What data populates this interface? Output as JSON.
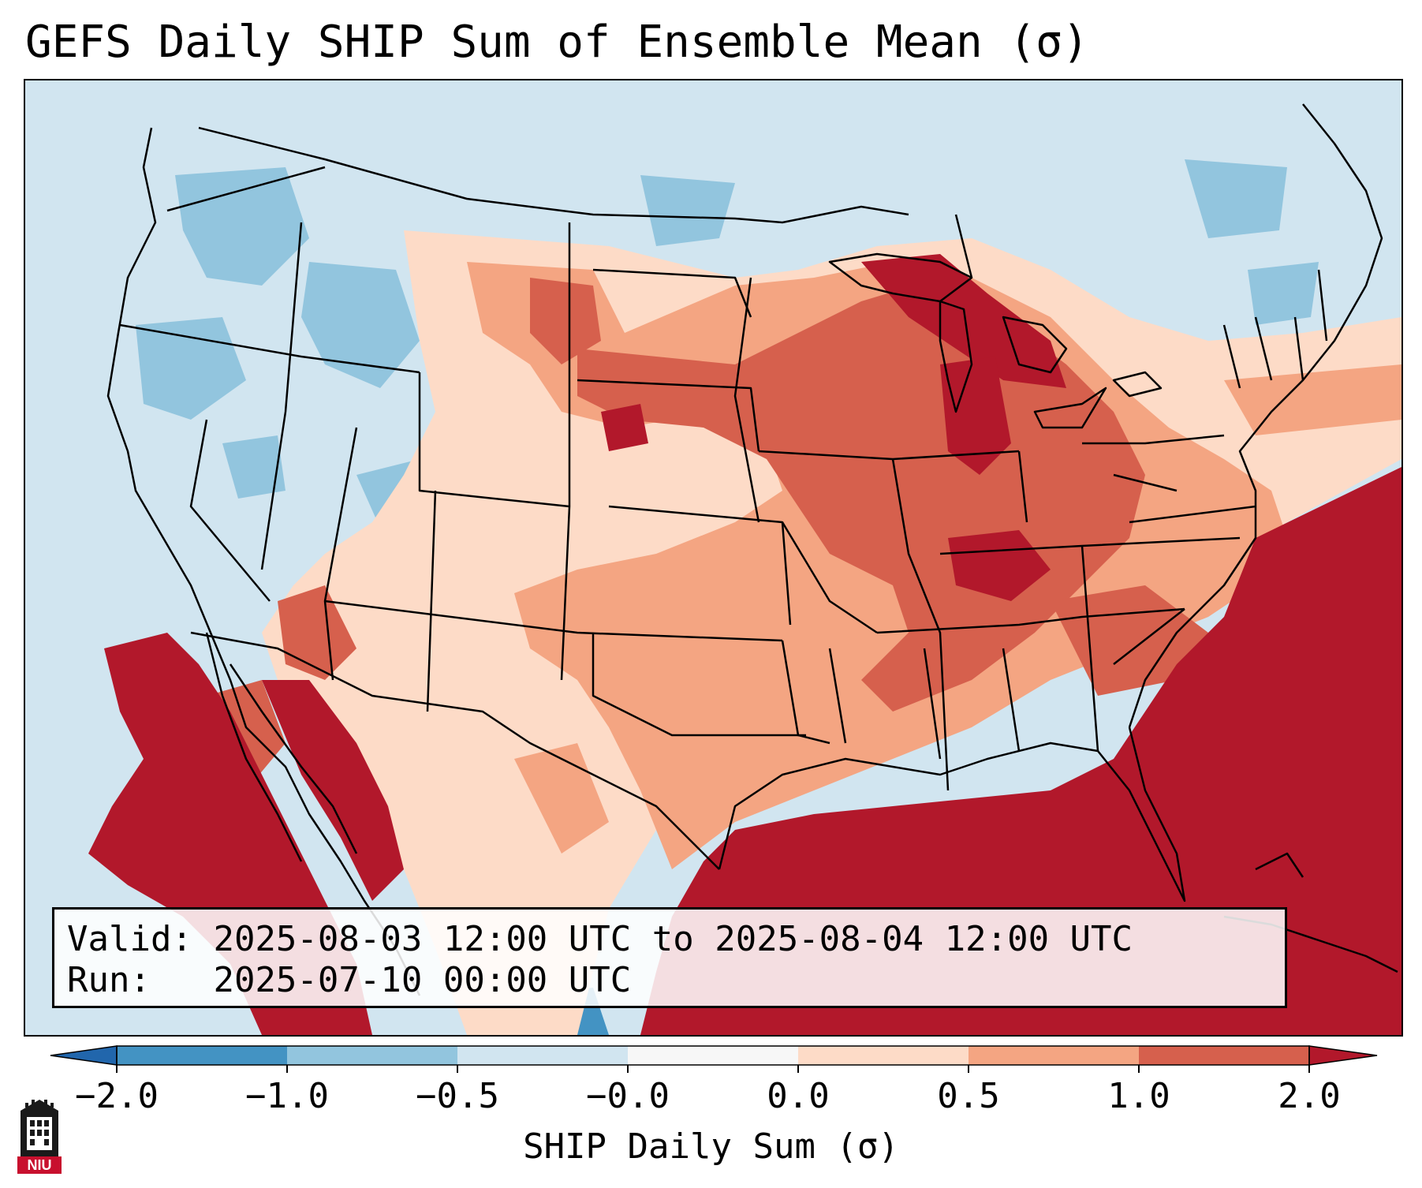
{
  "title": "GEFS Daily SHIP Sum of Ensemble Mean (σ)",
  "info": {
    "valid_label": "Valid:",
    "valid_value": "2025-08-03 12:00 UTC to 2025-08-04 12:00 UTC",
    "run_label": "Run:",
    "run_value": "2025-07-10 00:00 UTC"
  },
  "map": {
    "region": "Contiguous United States",
    "background_color": "#d1e5f0"
  },
  "colorbar": {
    "label": "SHIP Daily Sum (σ)",
    "tick_labels": [
      "−2.0",
      "−1.0",
      "−0.5",
      "−0.0",
      "0.0",
      "0.5",
      "1.0",
      "2.0"
    ],
    "colors": {
      "under": "#2166ac",
      "below_-1.0": "#4393c3",
      "-1.0_to_-0.5": "#92c5de",
      "-0.5_to_0.0": "#d1e5f0",
      "0.0": "#f7f7f7",
      "0.0_to_0.5": "#fddbc7",
      "0.5_to_1.0": "#f4a582",
      "1.0_to_2.0": "#d6604d",
      "over": "#b2182b"
    }
  },
  "logo": {
    "text": "NIU",
    "icon": "niu-university-logo-icon"
  }
}
